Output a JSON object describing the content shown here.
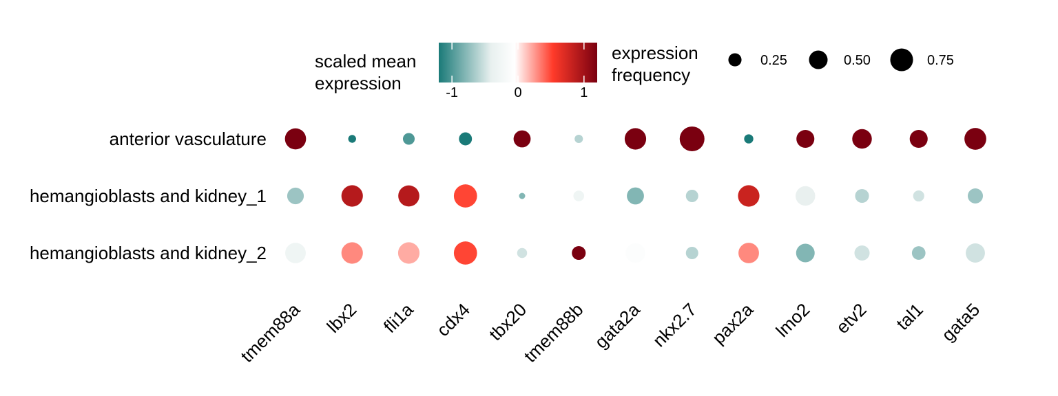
{
  "chart_data": {
    "type": "dotplot",
    "rows": [
      "anterior vasculature",
      "hemangioblasts and kidney_1",
      "hemangioblasts and kidney_2"
    ],
    "columns": [
      "tmem88a",
      "lbx2",
      "fli1a",
      "cdx4",
      "tbx20",
      "tmem88b",
      "gata2a",
      "nkx2.7",
      "pax2a",
      "lmo2",
      "etv2",
      "tal1",
      "gata5"
    ],
    "scaled_mean_expression": [
      [
        1.2,
        -1.2,
        -1.0,
        -1.2,
        1.2,
        -0.6,
        1.2,
        1.2,
        -1.2,
        1.2,
        1.2,
        1.2,
        1.2
      ],
      [
        -0.7,
        0.9,
        0.9,
        0.5,
        -0.8,
        -0.3,
        -0.8,
        -0.6,
        0.8,
        -0.4,
        -0.6,
        -0.5,
        -0.7
      ],
      [
        -0.3,
        0.3,
        0.2,
        0.5,
        -0.5,
        1.2,
        -0.1,
        -0.6,
        0.3,
        -0.8,
        -0.5,
        -0.7,
        -0.5
      ]
    ],
    "expression_frequency": [
      [
        0.58,
        0.08,
        0.18,
        0.22,
        0.38,
        0.09,
        0.6,
        0.8,
        0.11,
        0.42,
        0.5,
        0.42,
        0.62
      ],
      [
        0.36,
        0.6,
        0.58,
        0.7,
        0.05,
        0.15,
        0.38,
        0.2,
        0.6,
        0.5,
        0.25,
        0.16,
        0.3
      ],
      [
        0.55,
        0.6,
        0.6,
        0.7,
        0.13,
        0.25,
        0.5,
        0.2,
        0.55,
        0.45,
        0.3,
        0.24,
        0.48
      ]
    ],
    "color_legend": {
      "title": "scaled mean\nexpression",
      "ticks": [
        "-1",
        "0",
        "1"
      ],
      "tick_values": [
        -1,
        0,
        1
      ],
      "range": [
        -1.2,
        1.2
      ],
      "colors": [
        "#1a7a78",
        "#e8f0ef",
        "#ffffff",
        "#ff3b2a",
        "#7a0010"
      ]
    },
    "size_legend": {
      "title": "expression\nfrequency",
      "labels": [
        "0.25",
        "0.50",
        "0.75"
      ],
      "values": [
        0.25,
        0.5,
        0.75
      ]
    }
  }
}
